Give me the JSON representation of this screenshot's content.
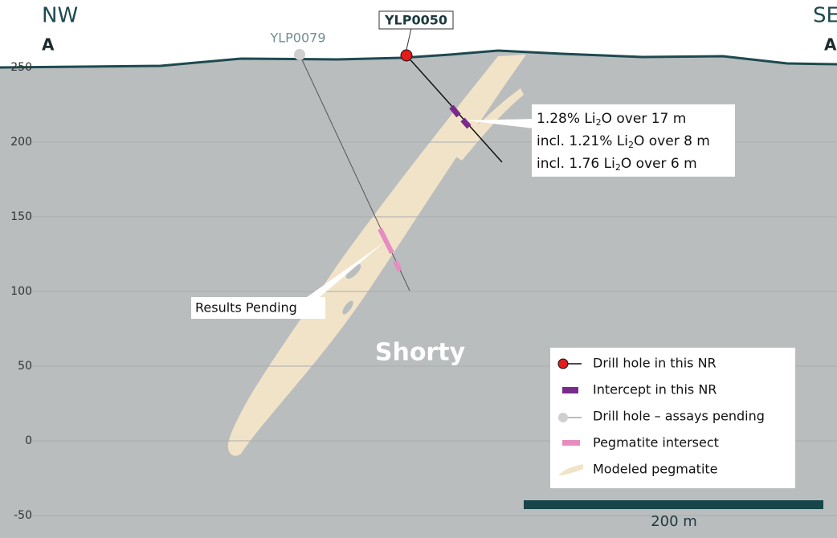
{
  "header": {
    "left": {
      "direction": "NW",
      "letter": "A"
    },
    "right": {
      "direction": "SE",
      "letter": "A"
    }
  },
  "elevation_ticks": [
    250,
    200,
    150,
    100,
    50,
    0,
    -50
  ],
  "holes": [
    {
      "name": "YLP0079"
    },
    {
      "name": "YLP0050"
    }
  ],
  "annotations": {
    "intercept": [
      [
        {
          "text": "1.28% Li"
        },
        {
          "sub": "2"
        },
        {
          "text": "O over 17 m"
        }
      ],
      [
        {
          "text": "incl. 1.21% Li"
        },
        {
          "sub": "2"
        },
        {
          "text": "O over 8 m"
        }
      ],
      [
        {
          "text": "incl. 1.76 Li"
        },
        {
          "sub": "2"
        },
        {
          "text": "O over 6 m"
        }
      ]
    ],
    "pending": "Results Pending"
  },
  "feature_label": "Shorty",
  "legend": [
    "Drill hole in this NR",
    "Intercept in this NR",
    "Drill hole – assays pending",
    "Pegmatite intersect",
    "Modeled pegmatite"
  ],
  "scale_bar": "200 m"
}
